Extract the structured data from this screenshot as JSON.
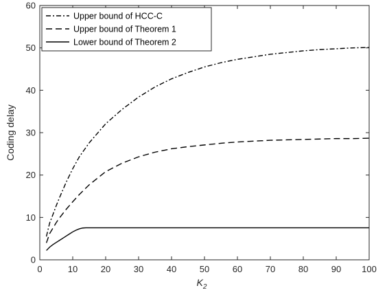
{
  "chart_data": {
    "type": "line",
    "title": "",
    "xlabel": "K",
    "xlabel_subscript": "2",
    "ylabel": "Coding delay",
    "xlim": [
      0,
      100
    ],
    "ylim": [
      0,
      60
    ],
    "xticks": [
      0,
      10,
      20,
      30,
      40,
      50,
      60,
      70,
      80,
      90,
      100
    ],
    "yticks": [
      0,
      10,
      20,
      30,
      40,
      50,
      60
    ],
    "grid": false,
    "legend_position": "top-left",
    "series": [
      {
        "name": "Upper bound of HCC-C",
        "dash": "dash-dot",
        "color": "#000000",
        "x": [
          2,
          3,
          4,
          5,
          6,
          8,
          10,
          12,
          15,
          20,
          25,
          30,
          35,
          40,
          45,
          50,
          55,
          60,
          65,
          70,
          75,
          80,
          85,
          90,
          95,
          100
        ],
        "y": [
          5.5,
          8.7,
          10.7,
          12.8,
          14.7,
          18.3,
          21.5,
          24.3,
          27.6,
          32.1,
          35.5,
          38.4,
          40.8,
          42.7,
          44.2,
          45.5,
          46.5,
          47.3,
          47.9,
          48.5,
          48.9,
          49.3,
          49.6,
          49.8,
          50.0,
          50.1
        ]
      },
      {
        "name": "Upper bound of Theorem 1",
        "dash": "dashed",
        "color": "#000000",
        "x": [
          2,
          3,
          4,
          5,
          6,
          8,
          10,
          12,
          15,
          20,
          25,
          30,
          35,
          40,
          45,
          50,
          55,
          60,
          65,
          70,
          75,
          80,
          85,
          90,
          95,
          100
        ],
        "y": [
          4.0,
          6.2,
          7.5,
          8.8,
          9.9,
          11.9,
          13.7,
          15.4,
          17.7,
          20.8,
          22.8,
          24.3,
          25.4,
          26.2,
          26.7,
          27.1,
          27.5,
          27.8,
          28.0,
          28.2,
          28.3,
          28.4,
          28.5,
          28.6,
          28.6,
          28.7
        ]
      },
      {
        "name": "Lower bound of Theorem 2",
        "dash": "solid",
        "color": "#000000",
        "x": [
          2,
          3,
          4,
          5,
          6,
          7,
          8,
          9,
          10,
          11,
          12,
          13,
          14,
          15,
          20,
          30,
          40,
          50,
          60,
          70,
          80,
          90,
          100
        ],
        "y": [
          2.2,
          3.0,
          3.6,
          4.1,
          4.6,
          5.1,
          5.6,
          6.1,
          6.6,
          7.0,
          7.3,
          7.5,
          7.55,
          7.55,
          7.55,
          7.55,
          7.55,
          7.55,
          7.55,
          7.55,
          7.55,
          7.55,
          7.55
        ]
      }
    ]
  }
}
